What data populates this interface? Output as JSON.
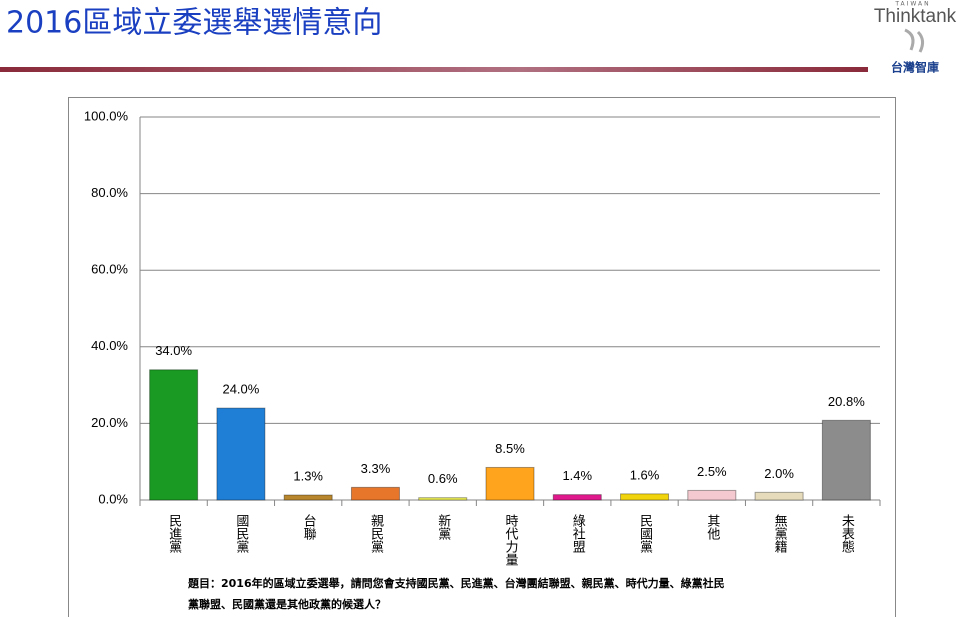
{
  "header": {
    "title": "2016區域立委選舉選情意向"
  },
  "logo": {
    "top": "TAIWAN",
    "brand": "Thinktank",
    "name": "台灣智庫"
  },
  "chart_data": {
    "type": "bar",
    "categories": [
      "民進黨",
      "國民黨",
      "台聯",
      "親民黨",
      "新黨",
      "時代力量",
      "綠社盟",
      "民國黨",
      "其他",
      "無黨籍",
      "未表態"
    ],
    "values": [
      34.0,
      24.0,
      1.3,
      3.3,
      0.6,
      8.5,
      1.4,
      1.6,
      2.5,
      2.0,
      20.8
    ],
    "value_labels": [
      "34.0%",
      "24.0%",
      "1.3%",
      "3.3%",
      "0.6%",
      "8.5%",
      "1.4%",
      "1.6%",
      "2.5%",
      "2.0%",
      "20.8%"
    ],
    "colors": [
      "#1a9a22",
      "#1f7fd6",
      "#b8862c",
      "#e8762a",
      "#eded55",
      "#ffa41c",
      "#e0198c",
      "#f2d40c",
      "#f5c9d0",
      "#e6dcbc",
      "#8c8c8c"
    ],
    "ylim": [
      0,
      100
    ],
    "yticks": [
      {
        "value": 0,
        "label": "0.0%"
      },
      {
        "value": 20,
        "label": "20.0%"
      },
      {
        "value": 40,
        "label": "40.0%"
      },
      {
        "value": 60,
        "label": "60.0%"
      },
      {
        "value": 80,
        "label": "80.0%"
      },
      {
        "value": 100,
        "label": "100.0%"
      }
    ],
    "grid": true
  },
  "footnote": [
    "題目：2016年的區域立委選舉，請問您會支持國民黨、民進黨、台灣團結聯盟、親民黨、時代力量、綠黨社民",
    "黨聯盟、民國黨還是其他政黨的候選人？"
  ]
}
